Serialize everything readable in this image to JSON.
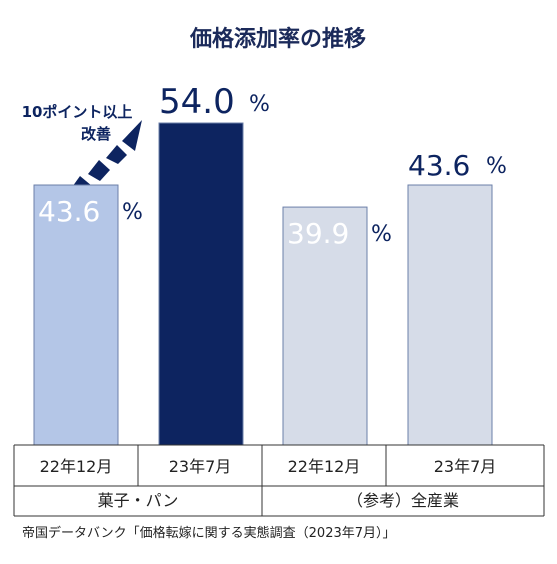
{
  "chart_data": {
    "type": "bar",
    "title": "価格添加率の推移",
    "unit": "%",
    "ylim": [
      0,
      60
    ],
    "colors": {
      "bar_light_blue": "#b4c6e7",
      "bar_navy": "#0d2460",
      "bar_gray": "#d6dce8",
      "title": "#1b2a5a",
      "label_dark": "#0d2460",
      "label_white": "#ffffff",
      "arrow": "#0d2460"
    },
    "bars": [
      {
        "category": "22年12月",
        "group": "菓子・パン",
        "value": 43.6,
        "value_label": "43.6",
        "label_position": "inside",
        "color": "#b4c6e7"
      },
      {
        "category": "23年7月",
        "group": "菓子・パン",
        "value": 54.0,
        "value_label": "54.0",
        "label_position": "above",
        "color": "#0d2460"
      },
      {
        "category": "22年12月",
        "group": "（参考）全産業",
        "value": 39.9,
        "value_label": "39.9",
        "label_position": "inside",
        "color": "#d6dce8"
      },
      {
        "category": "23年7月",
        "group": "（参考）全産業",
        "value": 43.6,
        "value_label": "43.6",
        "label_position": "above",
        "color": "#d6dce8"
      }
    ],
    "groups": [
      "菓子・パン",
      "（参考）全産業"
    ],
    "annotation": {
      "line1": "10ポイント以上",
      "line2": "改善",
      "icon": "dashed-arrow-up-right"
    }
  },
  "source": "帝国データバンク「価格転嫁に関する実態調査（2023年7月）」"
}
